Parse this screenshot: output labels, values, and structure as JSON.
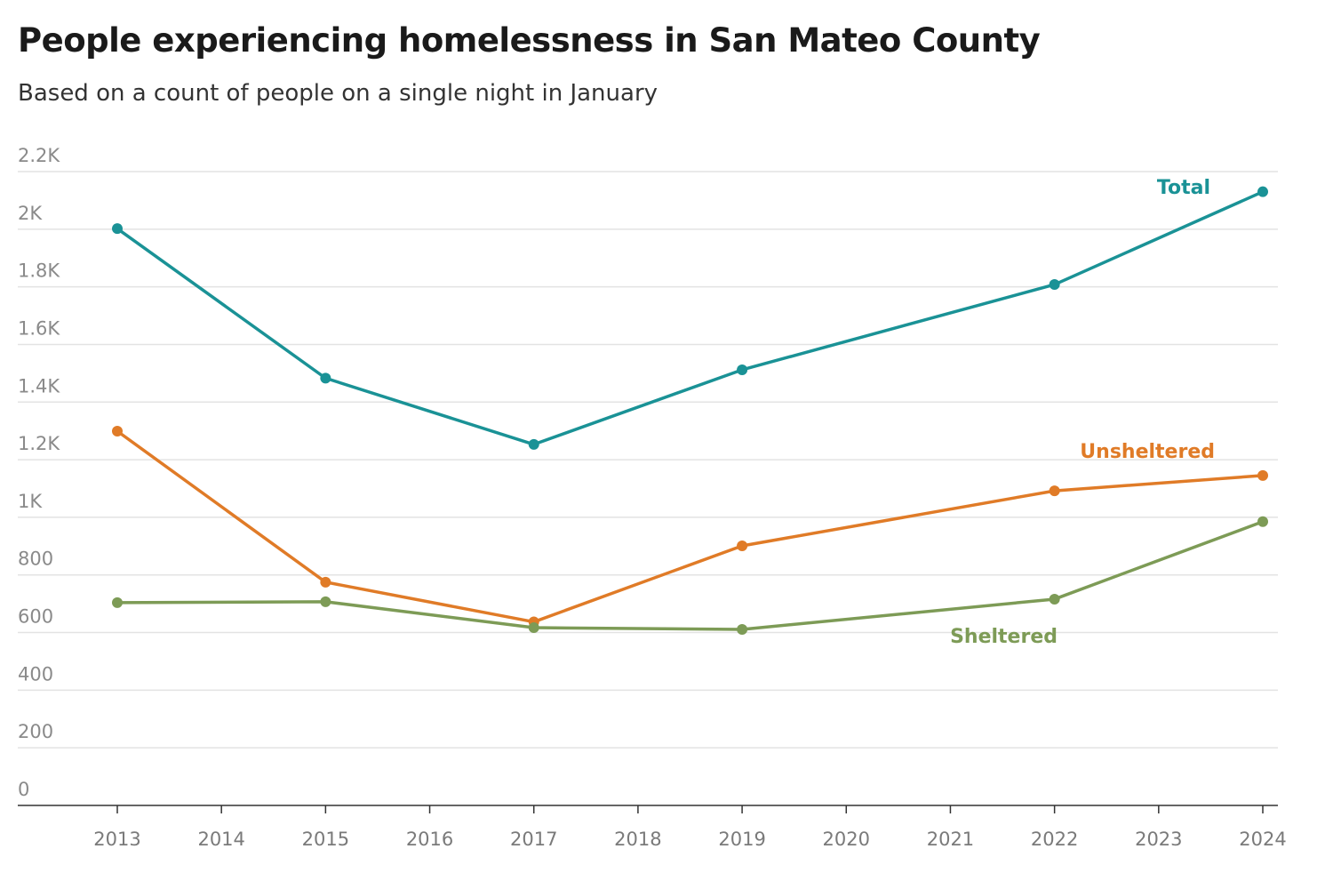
{
  "title": "People experiencing homelessness in San Mateo County",
  "subtitle": "Based on a count of people on a single night in January",
  "chart_data": {
    "type": "line",
    "title": "People experiencing homelessness in San Mateo County",
    "subtitle": "Based on a count of people on a single night in January",
    "xlabel": "",
    "ylabel": "",
    "x_ticks": [
      "2013",
      "2014",
      "2015",
      "2016",
      "2017",
      "2018",
      "2019",
      "2020",
      "2021",
      "2022",
      "2023",
      "2024"
    ],
    "y_ticks": [
      {
        "v": 0,
        "label": "0"
      },
      {
        "v": 200,
        "label": "200"
      },
      {
        "v": 400,
        "label": "400"
      },
      {
        "v": 600,
        "label": "600"
      },
      {
        "v": 800,
        "label": "800"
      },
      {
        "v": 1000,
        "label": "1K"
      },
      {
        "v": 1200,
        "label": "1.2K"
      },
      {
        "v": 1400,
        "label": "1.4K"
      },
      {
        "v": 1600,
        "label": "1.6K"
      },
      {
        "v": 1800,
        "label": "1.8K"
      },
      {
        "v": 2000,
        "label": "2K"
      },
      {
        "v": 2200,
        "label": "2.2K"
      }
    ],
    "ylim": [
      0,
      2200
    ],
    "xlim": [
      2013,
      2024
    ],
    "grid": true,
    "x": [
      2013,
      2015,
      2017,
      2019,
      2022,
      2024
    ],
    "series": [
      {
        "name": "Total",
        "color": "#1a9296",
        "values": [
          2002,
          1483,
          1253,
          1512,
          1808,
          2130
        ]
      },
      {
        "name": "Unsheltered",
        "color": "#e07b27",
        "values": [
          1299,
          775,
          637,
          901,
          1092,
          1145
        ]
      },
      {
        "name": "Sheltered",
        "color": "#7d9b56",
        "values": [
          704,
          707,
          617,
          611,
          716,
          985
        ]
      }
    ]
  }
}
